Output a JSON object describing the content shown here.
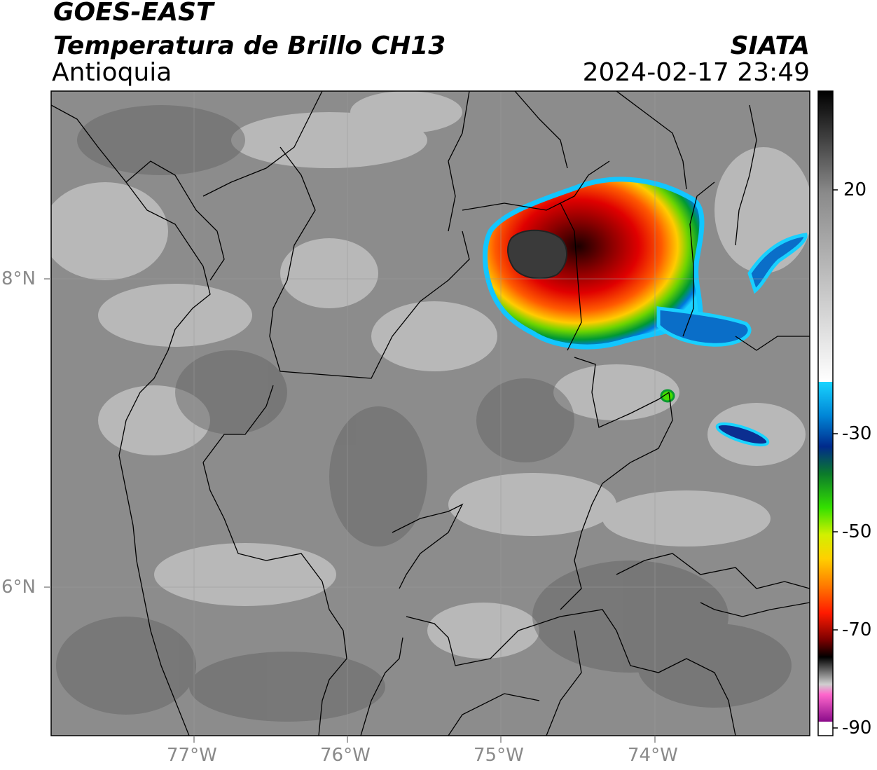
{
  "header": {
    "satellite": "GOES-EAST",
    "product": "Temperatura de Brillo CH13",
    "region": "Antioquia",
    "organization": "SIATA",
    "datetime": "2024-02-17 23:49"
  },
  "map": {
    "lon_ticks": [
      "77°W",
      "76°W",
      "75°W",
      "74°W"
    ],
    "lat_ticks": [
      "8°N",
      "6°N"
    ],
    "lon_range": [
      -77.95,
      -73.05
    ],
    "lat_range": [
      5.05,
      9.25
    ]
  },
  "colorbar": {
    "labels": [
      "20",
      "-30",
      "-50",
      "-70",
      "-90"
    ],
    "range": [
      -90,
      35
    ]
  }
}
